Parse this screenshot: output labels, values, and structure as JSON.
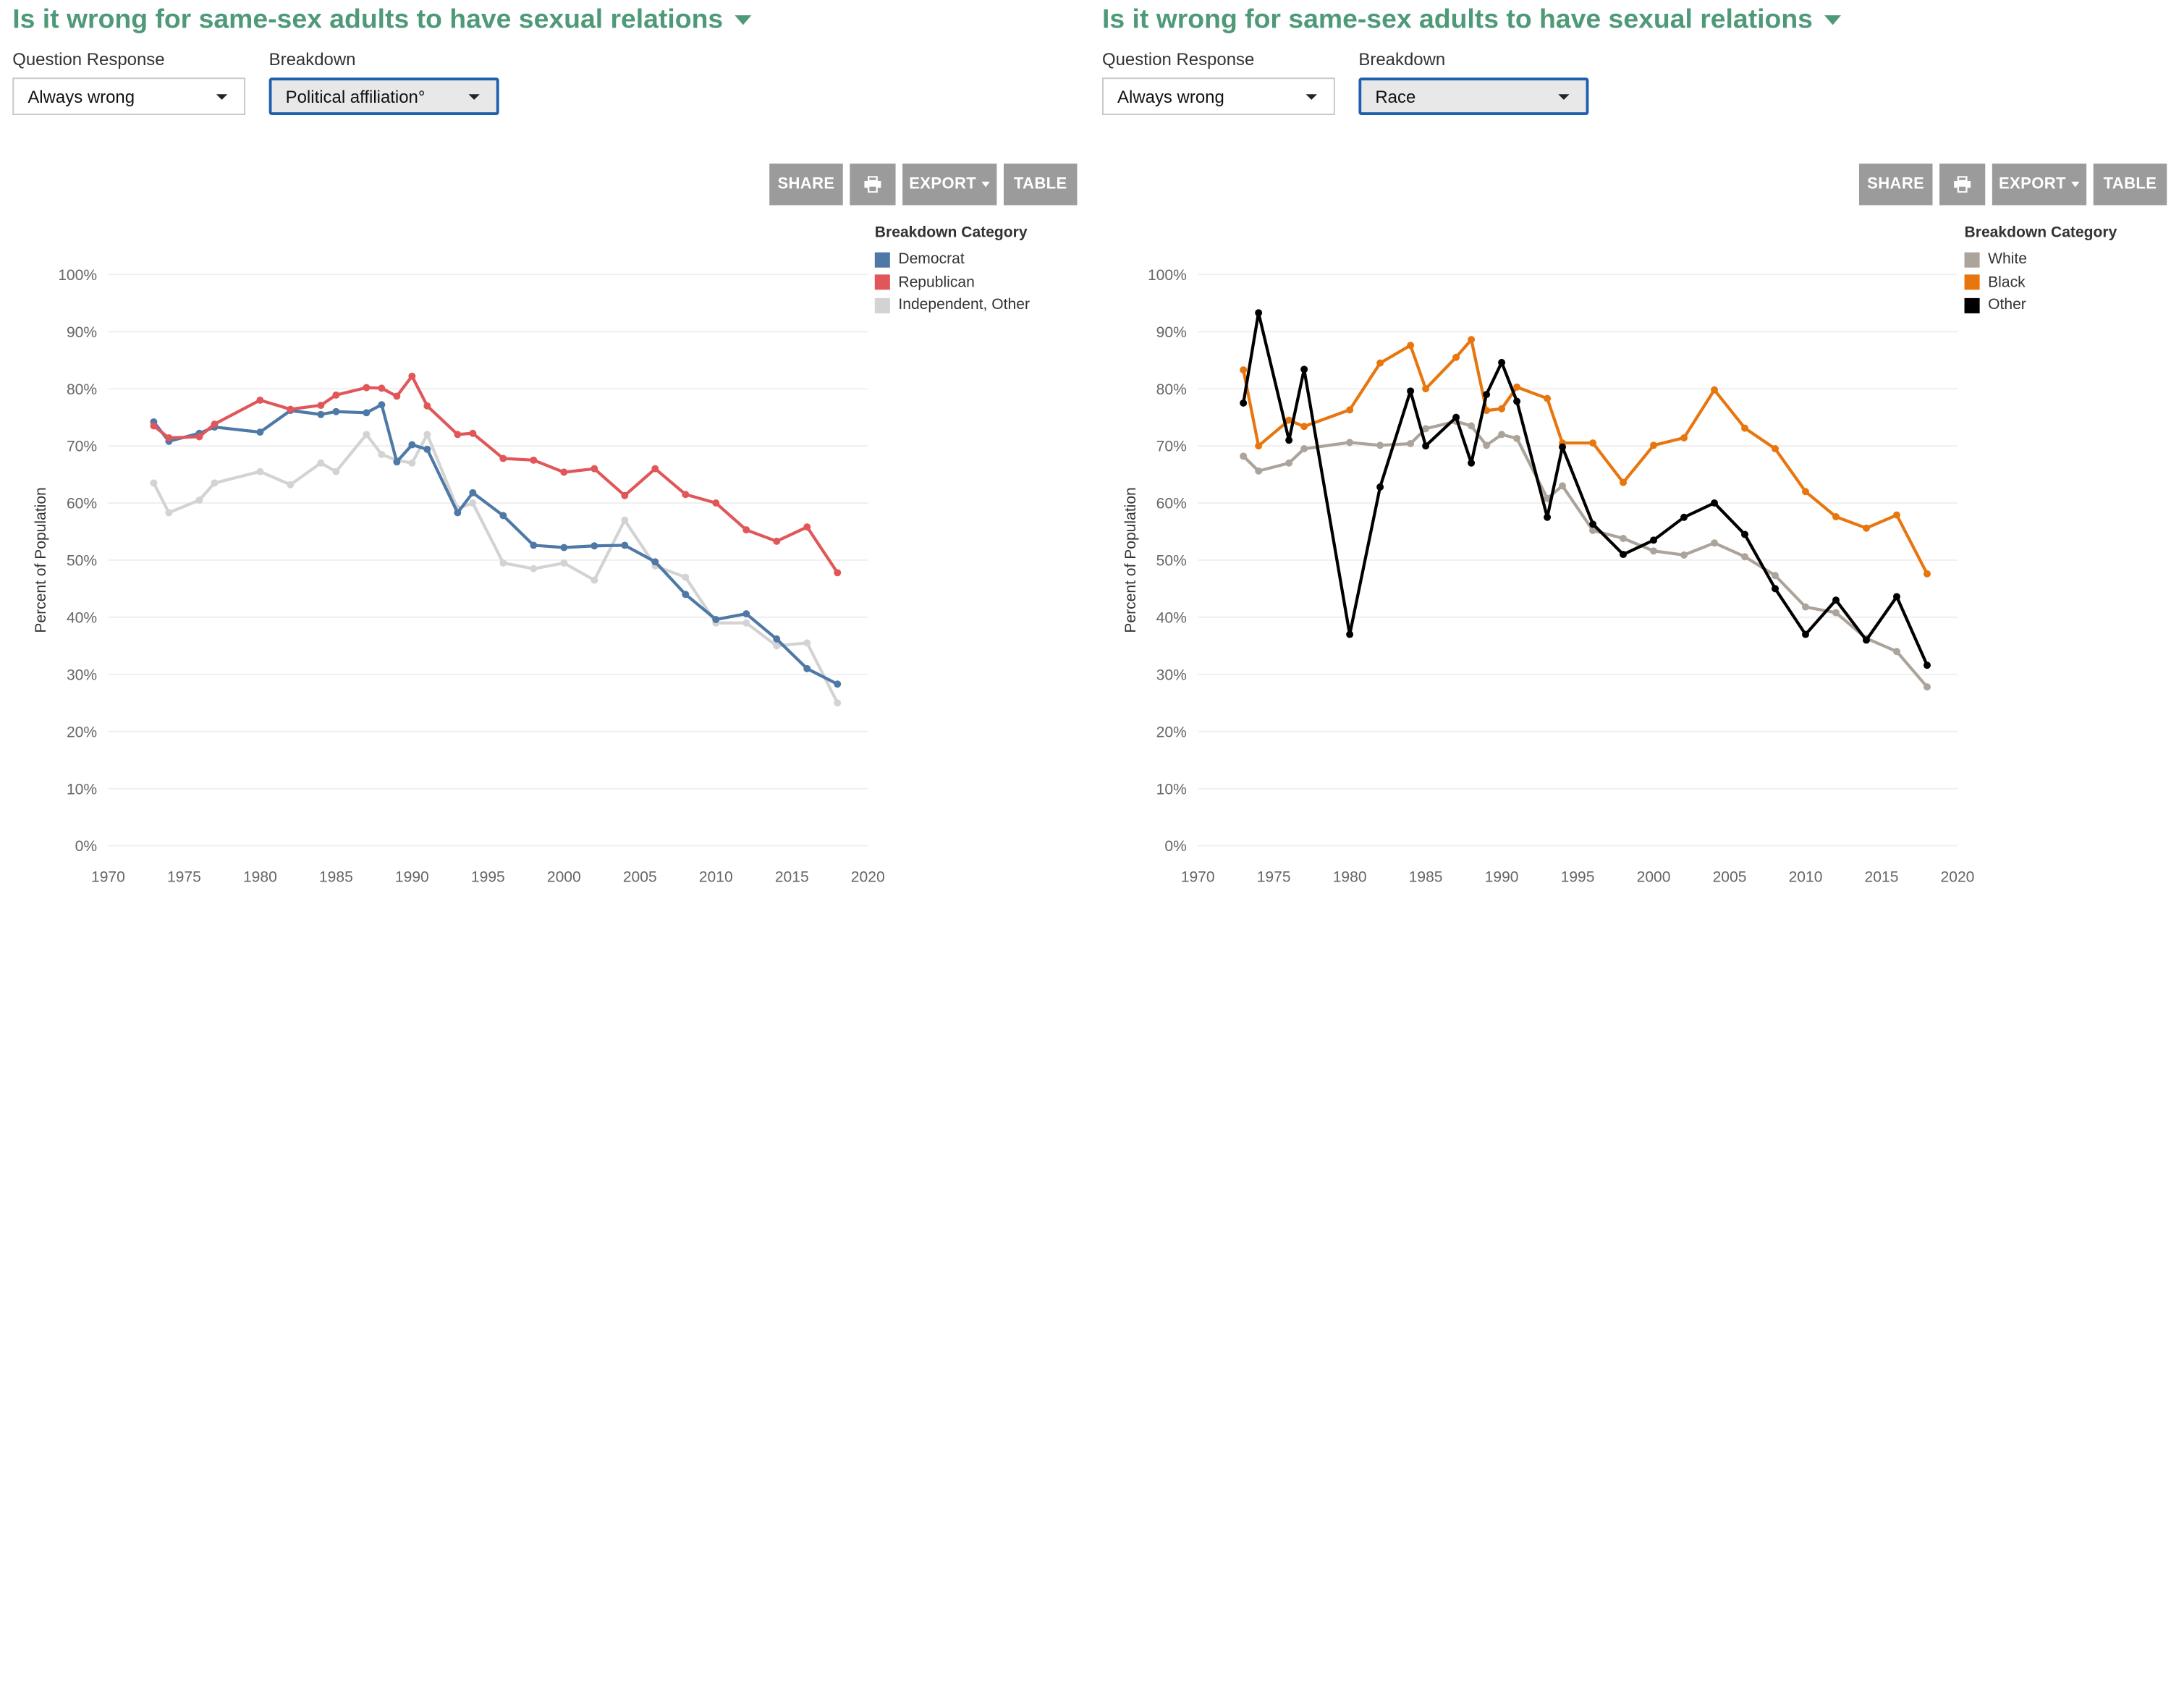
{
  "panels": [
    {
      "title": "Is it wrong for same-sex adults to have sexual relations",
      "question_label": "Question Response",
      "question_value": "Always wrong",
      "breakdown_label": "Breakdown",
      "breakdown_value": "Political affiliation°",
      "buttons": {
        "share": "SHARE",
        "export": "EXPORT",
        "table": "TABLE",
        "print_icon": "print-icon"
      },
      "legend_title": "Breakdown Category",
      "chart_data": {
        "type": "line",
        "ylabel": "Percent of Population",
        "xlim": [
          1970,
          2020
        ],
        "ylim": [
          0,
          100
        ],
        "x_ticks": [
          1970,
          1975,
          1980,
          1985,
          1990,
          1995,
          2000,
          2005,
          2010,
          2015,
          2020
        ],
        "y_ticks": [
          "0%",
          "10%",
          "20%",
          "30%",
          "40%",
          "50%",
          "60%",
          "70%",
          "80%",
          "90%",
          "100%"
        ],
        "y_tick_values": [
          0,
          10,
          20,
          30,
          40,
          50,
          60,
          70,
          80,
          90,
          100
        ],
        "grid": "horizontal",
        "legend_position": "top-right",
        "series": [
          {
            "name": "Independent, Other",
            "color": "#d3d3d3",
            "x": [
              1973,
              1974,
              1976,
              1977,
              1980,
              1982,
              1984,
              1985,
              1987,
              1988,
              1989,
              1990,
              1991,
              1993,
              1994,
              1996,
              1998,
              2000,
              2002,
              2004,
              2006,
              2008,
              2010,
              2012,
              2014,
              2016,
              2018
            ],
            "y": [
              63.5,
              58.3,
              60.5,
              63.5,
              65.5,
              63.2,
              67,
              65.5,
              72,
              68.5,
              67.5,
              67,
              72,
              59,
              60,
              49.5,
              48.5,
              49.5,
              46.5,
              57,
              49,
              47,
              39,
              39,
              35,
              35.5,
              25
            ]
          },
          {
            "name": "Democrat",
            "color": "#4e79a7",
            "x": [
              1973,
              1974,
              1976,
              1977,
              1980,
              1982,
              1984,
              1985,
              1987,
              1988,
              1989,
              1990,
              1991,
              1993,
              1994,
              1996,
              1998,
              2000,
              2002,
              2004,
              2006,
              2008,
              2010,
              2012,
              2014,
              2016,
              2018
            ],
            "y": [
              74.2,
              70.8,
              72.2,
              73.3,
              72.4,
              76.2,
              75.5,
              76,
              75.8,
              77.2,
              67.2,
              70.2,
              69.4,
              58.3,
              61.8,
              57.8,
              52.6,
              52.2,
              52.5,
              52.6,
              49.7,
              44,
              39.6,
              40.6,
              36.2,
              31,
              28.3
            ]
          },
          {
            "name": "Republican",
            "color": "#e15759",
            "x": [
              1973,
              1974,
              1976,
              1977,
              1980,
              1982,
              1984,
              1985,
              1987,
              1988,
              1989,
              1990,
              1991,
              1993,
              1994,
              1996,
              1998,
              2000,
              2002,
              2004,
              2006,
              2008,
              2010,
              2012,
              2014,
              2016,
              2018
            ],
            "y": [
              73.5,
              71.4,
              71.6,
              73.8,
              78,
              76.4,
              77.1,
              78.9,
              80.2,
              80.1,
              78.7,
              82.2,
              77,
              72,
              72.2,
              67.8,
              67.5,
              65.4,
              66,
              61.3,
              66,
              61.5,
              60,
              55.3,
              53.3,
              55.8,
              47.8
            ]
          }
        ]
      }
    },
    {
      "title": "Is it wrong for same-sex adults to have sexual relations",
      "question_label": "Question Response",
      "question_value": "Always wrong",
      "breakdown_label": "Breakdown",
      "breakdown_value": "Race",
      "buttons": {
        "share": "SHARE",
        "export": "EXPORT",
        "table": "TABLE",
        "print_icon": "print-icon"
      },
      "legend_title": "Breakdown Category",
      "chart_data": {
        "type": "line",
        "ylabel": "Percent of Population",
        "xlim": [
          1970,
          2020
        ],
        "ylim": [
          0,
          100
        ],
        "x_ticks": [
          1970,
          1975,
          1980,
          1985,
          1990,
          1995,
          2000,
          2005,
          2010,
          2015,
          2020
        ],
        "y_ticks": [
          "0%",
          "10%",
          "20%",
          "30%",
          "40%",
          "50%",
          "60%",
          "70%",
          "80%",
          "90%",
          "100%"
        ],
        "y_tick_values": [
          0,
          10,
          20,
          30,
          40,
          50,
          60,
          70,
          80,
          90,
          100
        ],
        "grid": "horizontal",
        "legend_position": "top-right",
        "series": [
          {
            "name": "White",
            "color": "#aca39a",
            "x": [
              1973,
              1974,
              1976,
              1977,
              1980,
              1982,
              1984,
              1985,
              1987,
              1988,
              1989,
              1990,
              1991,
              1993,
              1994,
              1996,
              1998,
              2000,
              2002,
              2004,
              2006,
              2008,
              2010,
              2012,
              2014,
              2016,
              2018
            ],
            "y": [
              68.2,
              65.6,
              67,
              69.5,
              70.6,
              70.1,
              70.4,
              73,
              74.3,
              73.5,
              70.1,
              72,
              71.3,
              60.8,
              63,
              55.2,
              53.8,
              51.6,
              50.9,
              53,
              50.6,
              47.3,
              41.8,
              40.8,
              36.3,
              34,
              27.8
            ]
          },
          {
            "name": "Black",
            "color": "#e8760f",
            "x": [
              1973,
              1974,
              1976,
              1977,
              1980,
              1982,
              1984,
              1985,
              1987,
              1988,
              1989,
              1990,
              1991,
              1993,
              1994,
              1996,
              1998,
              2000,
              2002,
              2004,
              2006,
              2008,
              2010,
              2012,
              2014,
              2016,
              2018
            ],
            "y": [
              83.3,
              70,
              74.5,
              73.4,
              76.3,
              84.5,
              87.6,
              80,
              85.5,
              88.6,
              76.2,
              76.5,
              80.3,
              78.3,
              70.5,
              70.5,
              63.6,
              70.1,
              71.4,
              79.8,
              73.1,
              69.5,
              62,
              57.6,
              55.6,
              57.9,
              47.6
            ]
          },
          {
            "name": "Other",
            "color": "#000000",
            "x": [
              1973,
              1974,
              1976,
              1977,
              1980,
              1982,
              1984,
              1985,
              1987,
              1988,
              1989,
              1990,
              1991,
              1993,
              1994,
              1996,
              1998,
              2000,
              2002,
              2004,
              2006,
              2008,
              2010,
              2012,
              2014,
              2016,
              2018
            ],
            "y": [
              77.5,
              93.3,
              71,
              83.4,
              37,
              62.8,
              79.6,
              70,
              75,
              67,
              79,
              84.6,
              77.8,
              57.5,
              69.8,
              56.3,
              51,
              53.5,
              57.5,
              60,
              54.5,
              45,
              37,
              43,
              36,
              43.6,
              31.6
            ]
          }
        ]
      }
    }
  ]
}
